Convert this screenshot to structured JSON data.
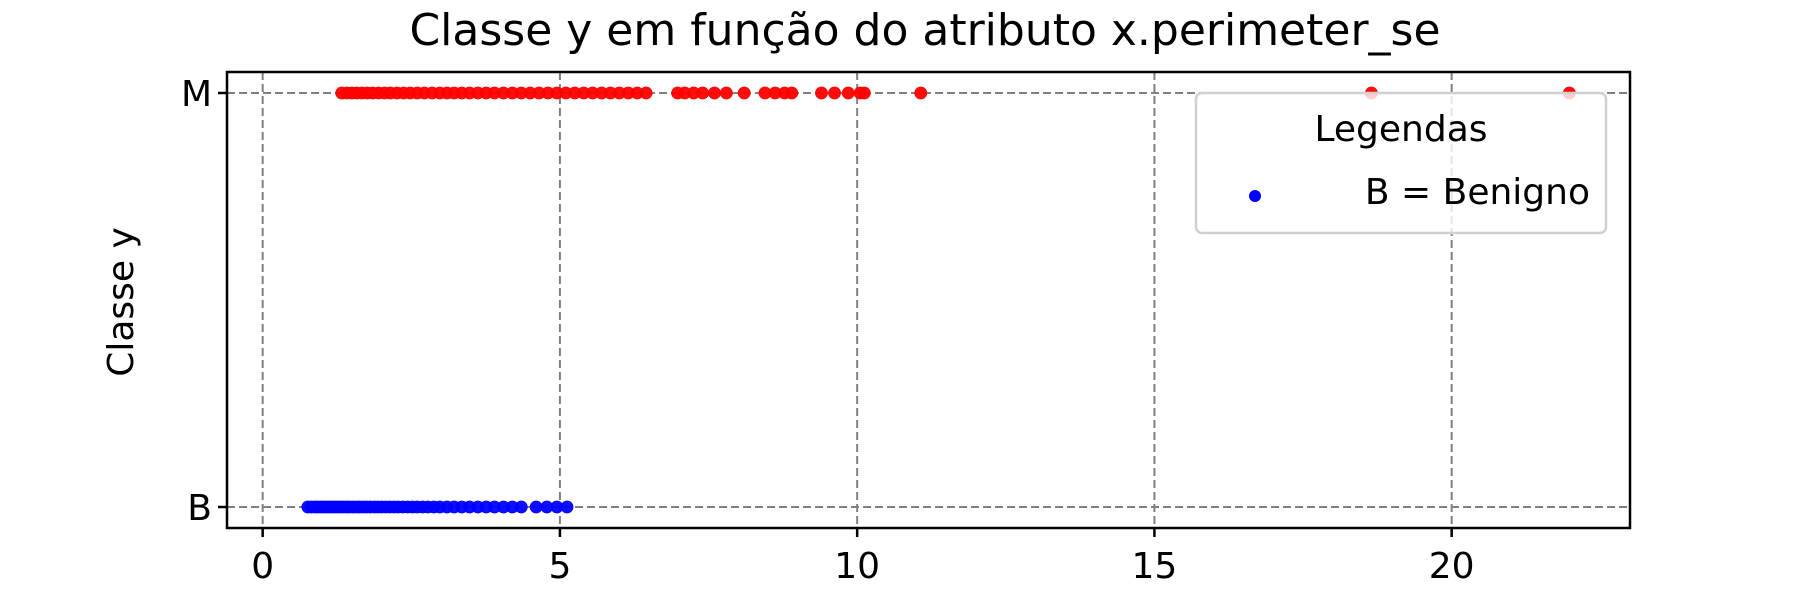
{
  "chart_data": {
    "type": "scatter",
    "title": "Classe y em função do atributo x.perimeter_se",
    "xlabel": "",
    "ylabel": "Classe y",
    "xlim": [
      -0.6,
      23.0
    ],
    "x_ticks": [
      0,
      5,
      10,
      15,
      20
    ],
    "y_categories": [
      "B",
      "M"
    ],
    "grid": true,
    "legend": {
      "title": "Legendas",
      "placement": "top-right",
      "entries": [
        {
          "label": "B = Benigno",
          "color": "#0000ff"
        }
      ]
    },
    "series": [
      {
        "name": "B = Benigno",
        "color": "#0000ff",
        "y": "B",
        "x": [
          0.76,
          0.82,
          0.88,
          0.93,
          0.98,
          1.02,
          1.07,
          1.12,
          1.17,
          1.21,
          1.26,
          1.31,
          1.36,
          1.41,
          1.46,
          1.52,
          1.58,
          1.63,
          1.69,
          1.75,
          1.81,
          1.88,
          1.94,
          2.0,
          2.07,
          2.14,
          2.21,
          2.28,
          2.36,
          2.44,
          2.52,
          2.6,
          2.69,
          2.78,
          2.88,
          2.98,
          3.1,
          3.22,
          3.35,
          3.48,
          3.62,
          3.76,
          3.9,
          4.05,
          4.2,
          4.35,
          4.6,
          4.78,
          4.95,
          5.12
        ]
      },
      {
        "color": "#ff0000",
        "y": "M",
        "x": [
          1.33,
          1.42,
          1.5,
          1.58,
          1.67,
          1.76,
          1.85,
          1.95,
          2.05,
          2.15,
          2.26,
          2.37,
          2.48,
          2.6,
          2.72,
          2.85,
          2.98,
          3.1,
          3.22,
          3.35,
          3.48,
          3.62,
          3.76,
          3.9,
          4.05,
          4.2,
          4.35,
          4.5,
          4.65,
          4.8,
          4.95,
          5.1,
          5.25,
          5.4,
          5.55,
          5.7,
          5.85,
          6.0,
          6.15,
          6.3,
          6.45,
          6.98,
          7.1,
          7.25,
          7.4,
          7.6,
          7.8,
          8.1,
          8.45,
          8.62,
          8.78,
          8.9,
          9.4,
          9.62,
          9.85,
          10.05,
          10.12,
          11.07,
          18.65,
          21.98
        ]
      }
    ]
  }
}
